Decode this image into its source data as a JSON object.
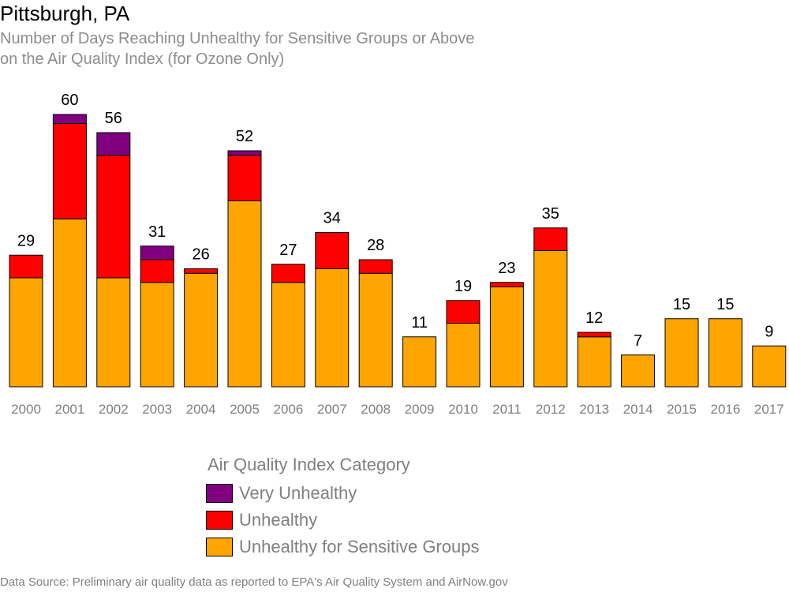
{
  "title": "Pittsburgh, PA",
  "subtitle_line1": "Number of Days Reaching Unhealthy for Sensitive Groups or Above",
  "subtitle_line2": "on the Air Quality Index (for Ozone Only)",
  "legend": {
    "title": "Air Quality Index Category",
    "items": [
      {
        "label": "Very Unhealthy",
        "color": "#800080"
      },
      {
        "label": "Unhealthy",
        "color": "#ff0000"
      },
      {
        "label": "Unhealthy for Sensitive Groups",
        "color": "#ffa500"
      }
    ]
  },
  "source": "Data Source: Preliminary air quality data as reported to EPA's Air Quality System and AirNow.gov",
  "chart_data": {
    "type": "bar",
    "stacked": true,
    "categories": [
      "2000",
      "2001",
      "2002",
      "2003",
      "2004",
      "2005",
      "2006",
      "2007",
      "2008",
      "2009",
      "2010",
      "2011",
      "2012",
      "2013",
      "2014",
      "2015",
      "2016",
      "2017"
    ],
    "series": [
      {
        "name": "Unhealthy for Sensitive Groups",
        "color": "#ffa500",
        "values": [
          24,
          37,
          24,
          23,
          25,
          41,
          23,
          26,
          25,
          11,
          14,
          22,
          30,
          11,
          7,
          15,
          15,
          9
        ]
      },
      {
        "name": "Unhealthy",
        "color": "#ff0000",
        "values": [
          5,
          21,
          27,
          5,
          1,
          10,
          4,
          8,
          3,
          0,
          5,
          1,
          5,
          1,
          0,
          0,
          0,
          0
        ]
      },
      {
        "name": "Very Unhealthy",
        "color": "#800080",
        "values": [
          0,
          2,
          5,
          3,
          0,
          1,
          0,
          0,
          0,
          0,
          0,
          0,
          0,
          0,
          0,
          0,
          0,
          0
        ]
      }
    ],
    "totals": [
      29,
      60,
      56,
      31,
      26,
      52,
      27,
      34,
      28,
      11,
      19,
      23,
      35,
      12,
      7,
      15,
      15,
      9
    ],
    "ylim": [
      0,
      60
    ],
    "grid": false,
    "legend_position": "bottom"
  }
}
